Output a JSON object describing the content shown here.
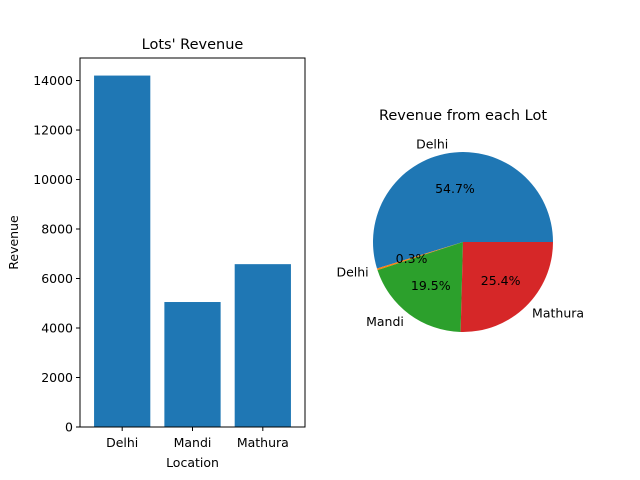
{
  "chart_data": [
    {
      "type": "bar",
      "title": "Lots' Revenue",
      "xlabel": "Location",
      "ylabel": "Revenue",
      "categories": [
        "Delhi",
        "Mandi",
        "Mathura"
      ],
      "values": [
        14200,
        5050,
        6580
      ],
      "ylim": [
        0,
        14910
      ],
      "yticks": [
        0,
        2000,
        4000,
        6000,
        8000,
        10000,
        12000,
        14000
      ],
      "ytick_labels": [
        "0",
        "2000",
        "4000",
        "6000",
        "8000",
        "10000",
        "12000",
        "14000"
      ],
      "color": "#1f77b4",
      "grid": false
    },
    {
      "type": "pie",
      "title": "Revenue from each Lot",
      "labels": [
        "Delhi",
        "Delhi",
        "Mandi",
        "Mathura"
      ],
      "percent_labels": [
        "54.7%",
        "0.3%",
        "19.5%",
        "25.4%"
      ],
      "values": [
        54.7,
        0.3,
        19.5,
        25.4
      ],
      "colors": [
        "#1f77b4",
        "#ff7f0e",
        "#2ca02c",
        "#d62728"
      ]
    }
  ]
}
